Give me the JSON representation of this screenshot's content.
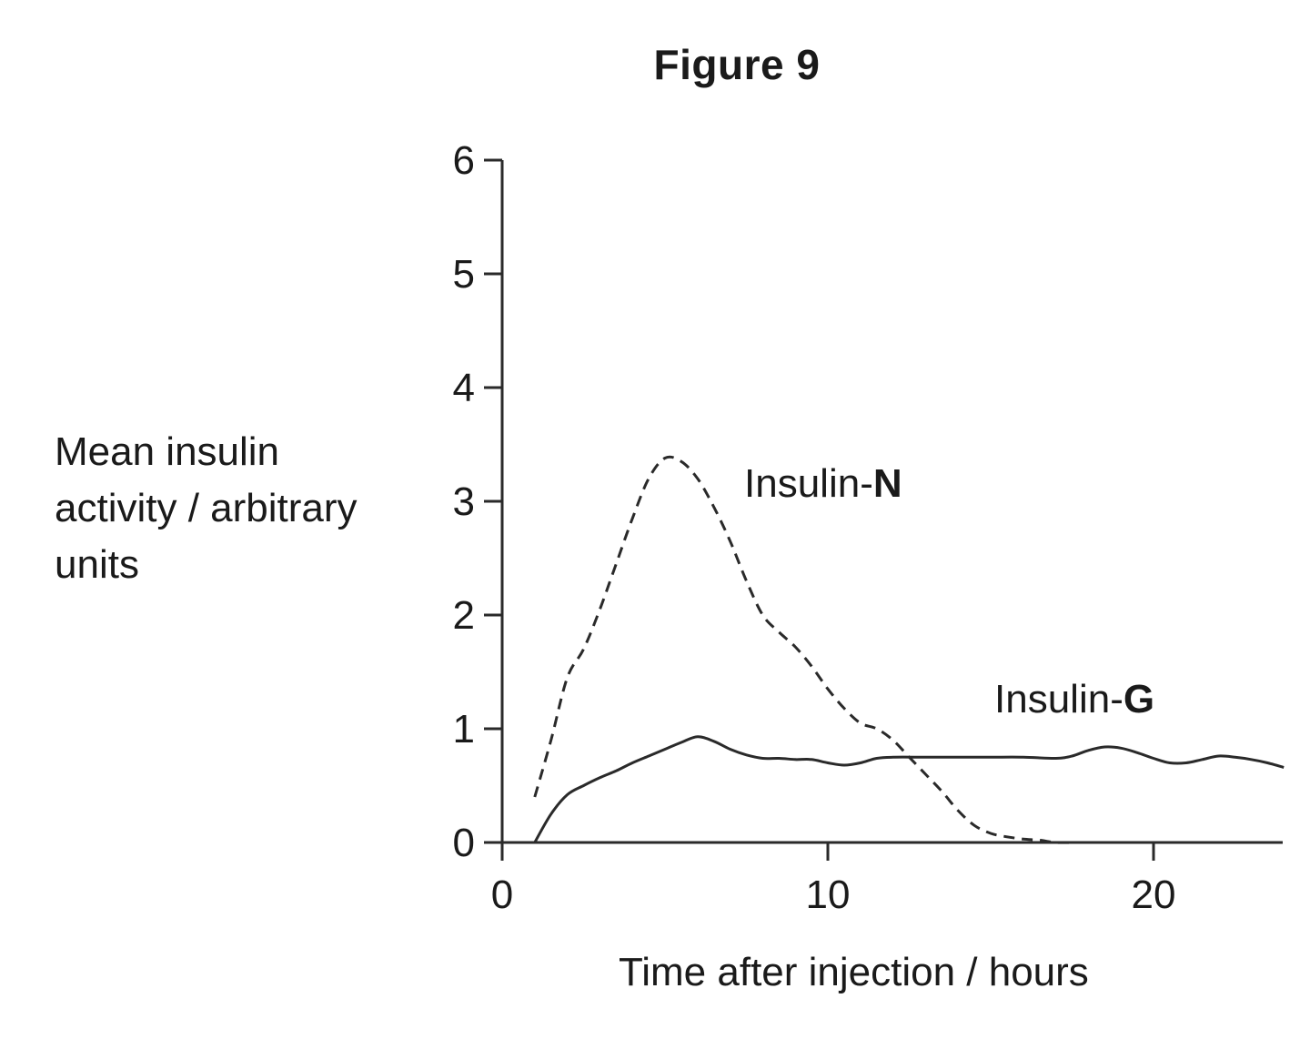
{
  "chart_data": {
    "type": "line",
    "title": "Figure 9",
    "xlabel": "Time after injection / hours",
    "ylabel": "Mean insulin\nactivity / arbitrary\nunits",
    "xlim": [
      0,
      24
    ],
    "ylim": [
      0,
      6
    ],
    "xticks": [
      0,
      10,
      20
    ],
    "yticks": [
      0,
      1,
      2,
      3,
      4,
      5,
      6
    ],
    "grid": false,
    "series": [
      {
        "name": "Insulin-N",
        "name_prefix": "Insulin-",
        "name_suffix": "N",
        "style": "dashed",
        "x": [
          1,
          1.5,
          2,
          2.5,
          3,
          3.5,
          4,
          4.5,
          5,
          5.5,
          6,
          6.5,
          7,
          7.5,
          8,
          8.5,
          9,
          9.5,
          10,
          10.5,
          11,
          11.5,
          12,
          12.5,
          13,
          13.5,
          14,
          14.5,
          15,
          15.5,
          16,
          16.5,
          17,
          17.5
        ],
        "values": [
          0.4,
          0.9,
          1.45,
          1.7,
          2.05,
          2.45,
          2.85,
          3.2,
          3.38,
          3.35,
          3.2,
          2.95,
          2.65,
          2.3,
          2.0,
          1.85,
          1.72,
          1.55,
          1.35,
          1.18,
          1.05,
          1.0,
          0.9,
          0.75,
          0.6,
          0.45,
          0.28,
          0.15,
          0.08,
          0.05,
          0.03,
          0.02,
          0.0,
          0.0
        ]
      },
      {
        "name": "Insulin-G",
        "name_prefix": "Insulin-",
        "name_suffix": "G",
        "style": "solid",
        "x": [
          1,
          1.5,
          2,
          2.5,
          3,
          3.5,
          4,
          4.5,
          5,
          5.5,
          6,
          6.5,
          7,
          7.5,
          8,
          8.5,
          9,
          9.5,
          10,
          10.5,
          11,
          11.5,
          12,
          13,
          14,
          15,
          16,
          17,
          17.5,
          18,
          18.5,
          19,
          19.5,
          20,
          20.5,
          21,
          21.5,
          22,
          22.5,
          23,
          23.5,
          24
        ],
        "values": [
          0.0,
          0.25,
          0.42,
          0.5,
          0.57,
          0.63,
          0.7,
          0.76,
          0.82,
          0.88,
          0.93,
          0.89,
          0.82,
          0.77,
          0.74,
          0.74,
          0.73,
          0.73,
          0.7,
          0.68,
          0.7,
          0.74,
          0.75,
          0.75,
          0.75,
          0.75,
          0.75,
          0.74,
          0.76,
          0.81,
          0.84,
          0.83,
          0.79,
          0.74,
          0.7,
          0.7,
          0.73,
          0.76,
          0.75,
          0.73,
          0.7,
          0.66
        ]
      }
    ]
  }
}
